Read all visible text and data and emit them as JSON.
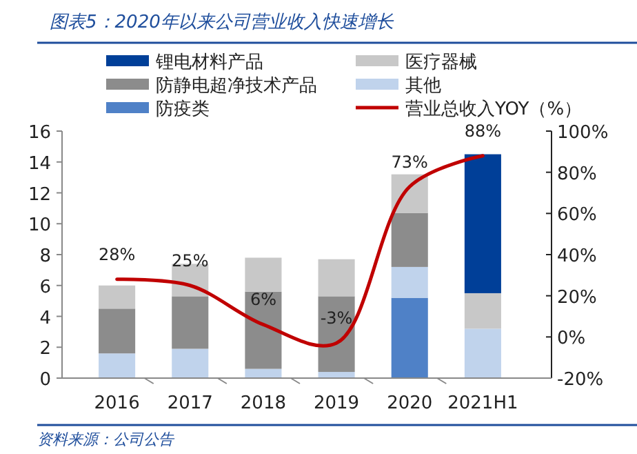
{
  "chart_data": {
    "type": "bar",
    "title": "图表5：2020年以来公司营业收入快速增长",
    "annotations": [
      "资料来源：公司公告"
    ],
    "categories": [
      "2016",
      "2017",
      "2018",
      "2019",
      "2020",
      "2021H1"
    ],
    "stacked": true,
    "legend": "top",
    "grid": false,
    "ylim": [
      0,
      16
    ],
    "yticks": [
      0,
      2,
      4,
      6,
      8,
      10,
      12,
      14,
      16
    ],
    "y2lim": [
      -20,
      100
    ],
    "y2ticks": [
      {
        "value": -20,
        "label": "-20%"
      },
      {
        "value": 0,
        "label": "0%"
      },
      {
        "value": 20,
        "label": "20%"
      },
      {
        "value": 40,
        "label": "40%"
      },
      {
        "value": 60,
        "label": "60%"
      },
      {
        "value": 80,
        "label": "80%"
      },
      {
        "value": 100,
        "label": "100%"
      }
    ],
    "series": [
      {
        "name": "防疫类",
        "color": "#4f81c7",
        "values": [
          0,
          0,
          0,
          0,
          5.2,
          0
        ]
      },
      {
        "name": "其他",
        "color": "#c0d3ec",
        "values": [
          1.6,
          1.9,
          0.6,
          0.4,
          2.0,
          3.2
        ]
      },
      {
        "name": "防静电超净技术产品",
        "color": "#8c8c8c",
        "values": [
          2.9,
          3.4,
          5.0,
          4.9,
          3.5,
          0
        ]
      },
      {
        "name": "医疗器械",
        "color": "#c8c8c8",
        "values": [
          1.5,
          2.1,
          2.2,
          2.4,
          2.5,
          2.3
        ]
      },
      {
        "name": "锂电材料产品",
        "color": "#003f98",
        "values": [
          0,
          0,
          0,
          0,
          0,
          9.0
        ]
      },
      {
        "name": "营业总收入YOY（%）",
        "type": "line",
        "axis": "y2",
        "color": "#c00000",
        "line_style": "solid",
        "marker": "none",
        "values": [
          28,
          25,
          6,
          -3,
          73,
          88
        ],
        "value_labels": [
          "28%",
          "25%",
          "6%",
          "-3%",
          "73%",
          "88%"
        ]
      }
    ]
  }
}
